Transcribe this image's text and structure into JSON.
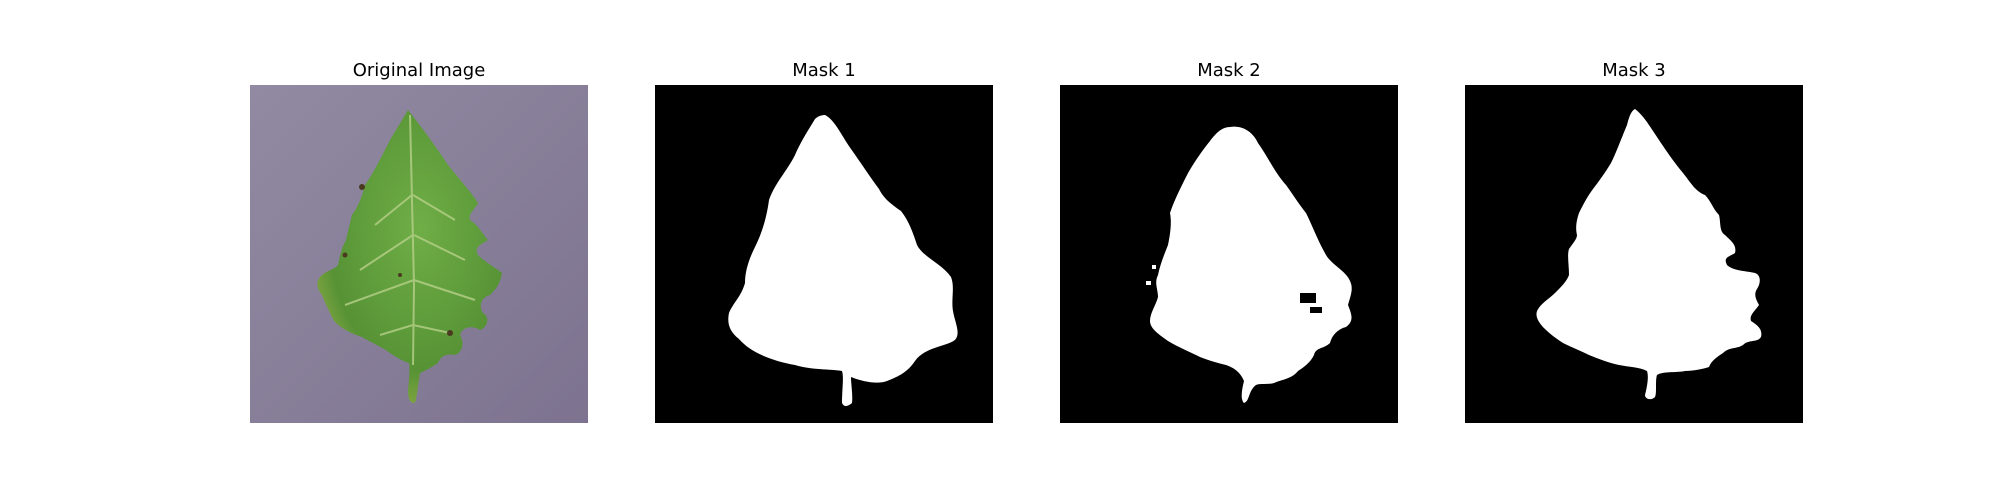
{
  "panels": [
    {
      "title": "Original Image",
      "kind": "photo"
    },
    {
      "title": "Mask 1",
      "kind": "mask"
    },
    {
      "title": "Mask 2",
      "kind": "mask"
    },
    {
      "title": "Mask 3",
      "kind": "mask"
    }
  ],
  "colors": {
    "background": "#ffffff",
    "photo_surface": "#8a7f98",
    "leaf_green": "#5c9a3f",
    "leaf_vein": "#b7d08a",
    "mask_background": "#000000",
    "mask_foreground": "#ffffff"
  }
}
